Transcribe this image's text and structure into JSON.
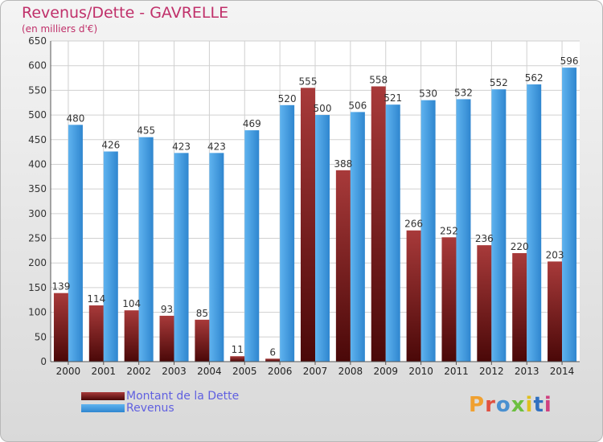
{
  "title": "Revenus/Dette - GAVRELLE",
  "subtitle": "(en milliers d'€)",
  "legend": {
    "dette_label": "Montant de la Dette",
    "revenus_label": "Revenus"
  },
  "logo": {
    "text": "Proxiti",
    "colors": [
      "#f0a030",
      "#e05040",
      "#4a90d0",
      "#6cbf40",
      "#e0c020",
      "#3070c0",
      "#d04080"
    ]
  },
  "colors": {
    "dette": "#7a1a1a",
    "revenus": "#3a94dc",
    "title": "#c0306a",
    "legend_text": "#6060e0"
  },
  "chart_data": {
    "type": "bar",
    "categories": [
      "2000",
      "2001",
      "2002",
      "2003",
      "2004",
      "2005",
      "2006",
      "2007",
      "2008",
      "2009",
      "2010",
      "2011",
      "2012",
      "2013",
      "2014"
    ],
    "series": [
      {
        "name": "Montant de la Dette",
        "values": [
          139,
          114,
          104,
          93,
          85,
          11,
          6,
          555,
          388,
          558,
          266,
          252,
          236,
          220,
          203
        ]
      },
      {
        "name": "Revenus",
        "values": [
          480,
          426,
          455,
          423,
          423,
          469,
          520,
          500,
          506,
          521,
          530,
          532,
          552,
          562,
          596
        ]
      }
    ],
    "ylim": [
      0,
      650
    ],
    "yticks": [
      0,
      50,
      100,
      150,
      200,
      250,
      300,
      350,
      400,
      450,
      500,
      550,
      600,
      650
    ],
    "grid": true,
    "legend_position": "bottom-left"
  }
}
